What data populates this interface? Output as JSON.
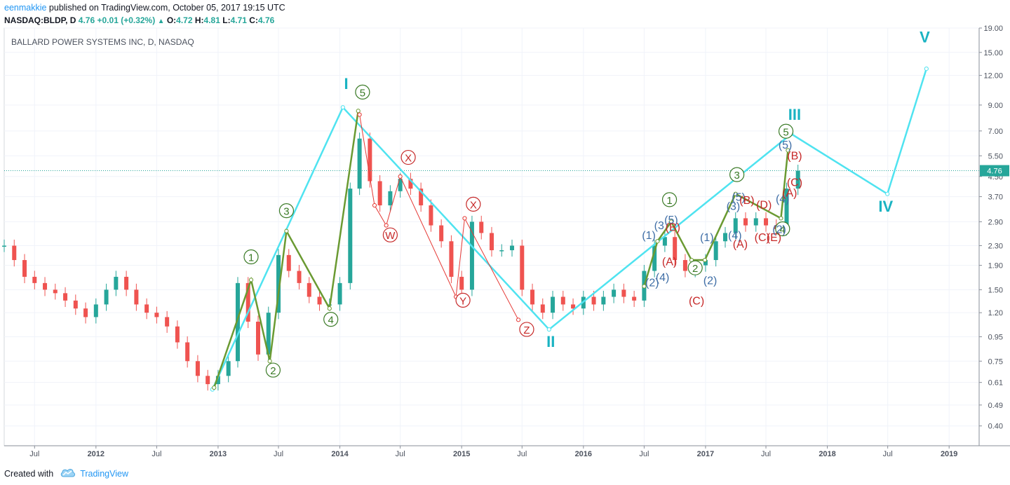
{
  "header": {
    "author": "eenmakkie",
    "published_text": " published on TradingView.com, October 05, 2017 19:15 UTC"
  },
  "quote": {
    "symbol": "NASDAQ:BLDP, D",
    "last": "4.76",
    "change": "+0.01 (+0.32%)",
    "o_label": "O:",
    "o": "4.72",
    "h_label": "H:",
    "h": "4.81",
    "l_label": "L:",
    "l": "4.71",
    "c_label": "C:",
    "c": "4.76",
    "up_arrow_icon": "triangle-up-icon"
  },
  "footer": {
    "created_with": "Created with",
    "brand": "TradingView",
    "logo_icon": "cloud-logo-icon"
  },
  "chart_data": {
    "type": "line",
    "title": "BALLARD POWER SYSTEMS INC, D, NASDAQ",
    "y_scale": "log",
    "ylim": [
      0.33,
      19.0
    ],
    "y_ticks": [
      "19.00",
      "15.00",
      "12.00",
      "9.00",
      "7.00",
      "5.50",
      "4.50",
      "3.70",
      "2.90",
      "2.30",
      "1.90",
      "1.50",
      "1.20",
      "0.95",
      "0.75",
      "0.61",
      "0.49",
      "0.40"
    ],
    "y_tick_values": [
      19.0,
      15.0,
      12.0,
      9.0,
      7.0,
      5.5,
      4.5,
      3.7,
      2.9,
      2.3,
      1.9,
      1.5,
      1.2,
      0.95,
      0.75,
      0.61,
      0.49,
      0.4
    ],
    "xlim": [
      "2011-04-01",
      "2019-04-01"
    ],
    "x_ticks": [
      {
        "date": "2011-07-01",
        "label": "Jul"
      },
      {
        "date": "2012-01-01",
        "label": "2012"
      },
      {
        "date": "2012-07-01",
        "label": "Jul"
      },
      {
        "date": "2013-01-01",
        "label": "2013"
      },
      {
        "date": "2013-07-01",
        "label": "Jul"
      },
      {
        "date": "2014-01-01",
        "label": "2014"
      },
      {
        "date": "2014-07-01",
        "label": "Jul"
      },
      {
        "date": "2015-01-01",
        "label": "2015"
      },
      {
        "date": "2015-07-01",
        "label": "Jul"
      },
      {
        "date": "2016-01-01",
        "label": "2016"
      },
      {
        "date": "2016-07-01",
        "label": "Jul"
      },
      {
        "date": "2017-01-01",
        "label": "2017"
      },
      {
        "date": "2017-07-01",
        "label": "Jul"
      },
      {
        "date": "2018-01-01",
        "label": "2018"
      },
      {
        "date": "2018-07-01",
        "label": "Jul"
      },
      {
        "date": "2019-01-01",
        "label": "2019"
      }
    ],
    "current_price": {
      "value": 4.76,
      "label": "4.76",
      "color": "#26a69a"
    },
    "series": [
      {
        "kind": "candles",
        "up_color": "#26a69a",
        "down_color": "#ef5350",
        "x": [
          "2011-04-01",
          "2011-05-01",
          "2011-06-01",
          "2011-07-01",
          "2011-08-01",
          "2011-09-01",
          "2011-10-01",
          "2011-11-01",
          "2011-12-01",
          "2012-01-01",
          "2012-02-01",
          "2012-03-01",
          "2012-04-01",
          "2012-05-01",
          "2012-06-01",
          "2012-07-01",
          "2012-08-01",
          "2012-09-01",
          "2012-10-01",
          "2012-11-01",
          "2012-12-01",
          "2013-01-01",
          "2013-02-01",
          "2013-03-01",
          "2013-04-01",
          "2013-05-01",
          "2013-06-01",
          "2013-07-01",
          "2013-08-01",
          "2013-09-01",
          "2013-10-01",
          "2013-11-01",
          "2013-12-01",
          "2014-01-01",
          "2014-02-01",
          "2014-03-01",
          "2014-04-01",
          "2014-05-01",
          "2014-06-01",
          "2014-07-01",
          "2014-08-01",
          "2014-09-01",
          "2014-10-01",
          "2014-11-01",
          "2014-12-01",
          "2015-01-01",
          "2015-02-01",
          "2015-03-01",
          "2015-04-01",
          "2015-05-01",
          "2015-06-01",
          "2015-07-01",
          "2015-08-01",
          "2015-09-01",
          "2015-10-01",
          "2015-11-01",
          "2015-12-01",
          "2016-01-01",
          "2016-02-01",
          "2016-03-01",
          "2016-04-01",
          "2016-05-01",
          "2016-06-01",
          "2016-07-01",
          "2016-08-01",
          "2016-09-01",
          "2016-10-01",
          "2016-11-01",
          "2016-12-01",
          "2017-01-01",
          "2017-02-01",
          "2017-03-01",
          "2017-04-01",
          "2017-05-01",
          "2017-06-01",
          "2017-07-01",
          "2017-08-01",
          "2017-09-01",
          "2017-10-05"
        ],
        "values": [
          2.3,
          2.0,
          1.7,
          1.6,
          1.5,
          1.45,
          1.35,
          1.25,
          1.15,
          1.3,
          1.5,
          1.7,
          1.5,
          1.3,
          1.2,
          1.15,
          1.05,
          0.9,
          0.75,
          0.65,
          0.6,
          0.65,
          0.75,
          1.6,
          1.1,
          0.8,
          1.2,
          2.1,
          1.8,
          1.6,
          1.4,
          1.3,
          1.3,
          1.6,
          4.0,
          6.5,
          4.3,
          3.4,
          3.9,
          4.4,
          4.0,
          3.4,
          2.8,
          2.4,
          1.7,
          1.5,
          2.9,
          2.6,
          2.2,
          2.2,
          2.3,
          1.5,
          1.3,
          1.2,
          1.4,
          1.3,
          1.25,
          1.4,
          1.3,
          1.4,
          1.5,
          1.4,
          1.35,
          1.8,
          2.3,
          2.5,
          2.0,
          1.8,
          1.9,
          2.0,
          2.4,
          2.6,
          3.0,
          2.8,
          3.0,
          2.8,
          2.7,
          4.0,
          4.76
        ]
      },
      {
        "kind": "wave-line",
        "color": "#4fe3f0",
        "x": [
          "2012-12-15",
          "2014-01-10",
          "2015-09-20",
          "2017-09-15",
          "2018-06-30",
          "2018-10-25"
        ],
        "values": [
          0.57,
          8.8,
          1.02,
          6.8,
          3.8,
          12.8
        ]
      },
      {
        "kind": "wave-line",
        "color": "#6a9a32",
        "x": [
          "2012-12-20",
          "2013-04-10",
          "2013-06-05",
          "2013-07-25",
          "2013-12-01",
          "2014-02-25"
        ],
        "values": [
          0.58,
          1.65,
          0.75,
          2.65,
          1.25,
          8.5
        ]
      },
      {
        "kind": "wave-line",
        "color": "#6a9a32",
        "x": [
          "2016-07-01",
          "2016-08-10",
          "2016-09-20",
          "2016-11-20",
          "2016-12-30",
          "2017-04-01",
          "2017-08-15",
          "2017-09-05"
        ],
        "values": [
          1.55,
          2.4,
          2.9,
          2.0,
          2.0,
          3.8,
          3.0,
          5.8
        ]
      },
      {
        "kind": "wave-line",
        "color": "#e53935",
        "x": [
          "2014-03-01",
          "2014-04-15",
          "2014-05-20",
          "2014-07-01",
          "2014-12-15",
          "2015-01-10",
          "2015-06-20"
        ],
        "values": [
          8.2,
          3.4,
          2.8,
          4.5,
          1.4,
          3.0,
          1.12
        ]
      }
    ],
    "annotations": [
      {
        "text": "I",
        "x": "2014-01-20",
        "y": 10.5,
        "style": "roman",
        "color": "#1ab3c2"
      },
      {
        "text": "II",
        "x": "2015-09-25",
        "y": 0.86,
        "style": "roman",
        "color": "#1ab3c2"
      },
      {
        "text": "III",
        "x": "2017-09-25",
        "y": 7.8,
        "style": "roman",
        "color": "#1ab3c2"
      },
      {
        "text": "IV",
        "x": "2018-06-25",
        "y": 3.2,
        "style": "roman",
        "color": "#1ab3c2"
      },
      {
        "text": "V",
        "x": "2018-10-20",
        "y": 16.5,
        "style": "roman",
        "color": "#1ab3c2"
      },
      {
        "text": "1",
        "x": "2013-04-10",
        "y": 1.98,
        "style": "circle",
        "color": "#3a7a26"
      },
      {
        "text": "2",
        "x": "2013-06-15",
        "y": 0.66,
        "style": "circle",
        "color": "#3a7a26"
      },
      {
        "text": "3",
        "x": "2013-07-25",
        "y": 3.1,
        "style": "circle",
        "color": "#3a7a26"
      },
      {
        "text": "4",
        "x": "2013-12-05",
        "y": 1.08,
        "style": "circle",
        "color": "#3a7a26"
      },
      {
        "text": "5",
        "x": "2014-03-10",
        "y": 9.8,
        "style": "circle",
        "color": "#3a7a26"
      },
      {
        "text": "1",
        "x": "2016-09-15",
        "y": 3.45,
        "style": "circle",
        "color": "#3a7a26"
      },
      {
        "text": "2",
        "x": "2016-12-01",
        "y": 1.78,
        "style": "circle",
        "color": "#3a7a26"
      },
      {
        "text": "3",
        "x": "2017-04-05",
        "y": 4.4,
        "style": "circle",
        "color": "#3a7a26"
      },
      {
        "text": "4",
        "x": "2017-08-20",
        "y": 2.6,
        "style": "circle",
        "color": "#3a7a26"
      },
      {
        "text": "5",
        "x": "2017-08-30",
        "y": 6.7,
        "style": "circle",
        "color": "#3a7a26"
      },
      {
        "text": "W",
        "x": "2014-06-01",
        "y": 2.45,
        "style": "circle",
        "color": "#c62828"
      },
      {
        "text": "X",
        "x": "2014-07-25",
        "y": 5.2,
        "style": "circle",
        "color": "#c62828"
      },
      {
        "text": "Y",
        "x": "2015-01-05",
        "y": 1.3,
        "style": "circle",
        "color": "#c62828"
      },
      {
        "text": "X",
        "x": "2015-02-05",
        "y": 3.3,
        "style": "circle",
        "color": "#c62828"
      },
      {
        "text": "Z",
        "x": "2015-07-15",
        "y": 0.98,
        "style": "circle",
        "color": "#c62828"
      },
      {
        "text": "(1)",
        "x": "2016-07-15",
        "y": 2.45,
        "style": "paren",
        "color": "#3f6ea6"
      },
      {
        "text": "(2)",
        "x": "2016-07-25",
        "y": 1.55,
        "style": "paren",
        "color": "#3f6ea6"
      },
      {
        "text": "(3",
        "x": "2016-08-15",
        "y": 2.7,
        "style": "paren",
        "color": "#3f6ea6"
      },
      {
        "text": "(4)",
        "x": "2016-08-25",
        "y": 1.63,
        "style": "paren",
        "color": "#3f6ea6"
      },
      {
        "text": "(5)",
        "x": "2016-09-20",
        "y": 2.85,
        "style": "paren",
        "color": "#3f6ea6"
      },
      {
        "text": "(B)",
        "x": "2016-09-25",
        "y": 2.65,
        "style": "paren",
        "color": "#c62828"
      },
      {
        "text": "(A)",
        "x": "2016-09-15",
        "y": 1.9,
        "style": "paren",
        "color": "#c62828"
      },
      {
        "text": "(C)",
        "x": "2016-12-05",
        "y": 1.3,
        "style": "paren",
        "color": "#c62828"
      },
      {
        "text": "(1)",
        "x": "2017-01-05",
        "y": 2.4,
        "style": "paren",
        "color": "#3f6ea6"
      },
      {
        "text": "(2)",
        "x": "2017-01-15",
        "y": 1.58,
        "style": "paren",
        "color": "#3f6ea6"
      },
      {
        "text": "(3)",
        "x": "2017-03-25",
        "y": 3.25,
        "style": "paren",
        "color": "#3f6ea6"
      },
      {
        "text": "(4)",
        "x": "2017-03-30",
        "y": 2.45,
        "style": "paren",
        "color": "#3f6ea6"
      },
      {
        "text": "(5)",
        "x": "2017-04-10",
        "y": 3.55,
        "style": "paren",
        "color": "#3f6ea6"
      },
      {
        "text": "(A)",
        "x": "2017-04-15",
        "y": 2.25,
        "style": "paren",
        "color": "#c62828"
      },
      {
        "text": "(B)",
        "x": "2017-05-05",
        "y": 3.45,
        "style": "paren",
        "color": "#c62828"
      },
      {
        "text": "(C)",
        "x": "2017-06-20",
        "y": 2.4,
        "style": "paren",
        "color": "#c62828"
      },
      {
        "text": "(D)",
        "x": "2017-06-25",
        "y": 3.3,
        "style": "paren",
        "color": "#c62828"
      },
      {
        "text": "(E)",
        "x": "2017-07-25",
        "y": 2.4,
        "style": "paren",
        "color": "#c62828"
      },
      {
        "text": "(2)",
        "x": "2017-08-10",
        "y": 2.6,
        "style": "paren",
        "color": "#3f6ea6"
      },
      {
        "text": "(4)",
        "x": "2017-08-20",
        "y": 3.5,
        "style": "paren",
        "color": "#3f6ea6"
      },
      {
        "text": "(A)",
        "x": "2017-09-10",
        "y": 3.7,
        "style": "paren",
        "color": "#c62828"
      },
      {
        "text": "(C)",
        "x": "2017-09-25",
        "y": 4.1,
        "style": "paren",
        "color": "#c62828"
      },
      {
        "text": "(B)",
        "x": "2017-09-25",
        "y": 5.3,
        "style": "paren",
        "color": "#c62828"
      },
      {
        "text": "(5)",
        "x": "2017-08-28",
        "y": 5.9,
        "style": "paren",
        "color": "#3f6ea6"
      }
    ],
    "grid": true,
    "legend": "none"
  }
}
